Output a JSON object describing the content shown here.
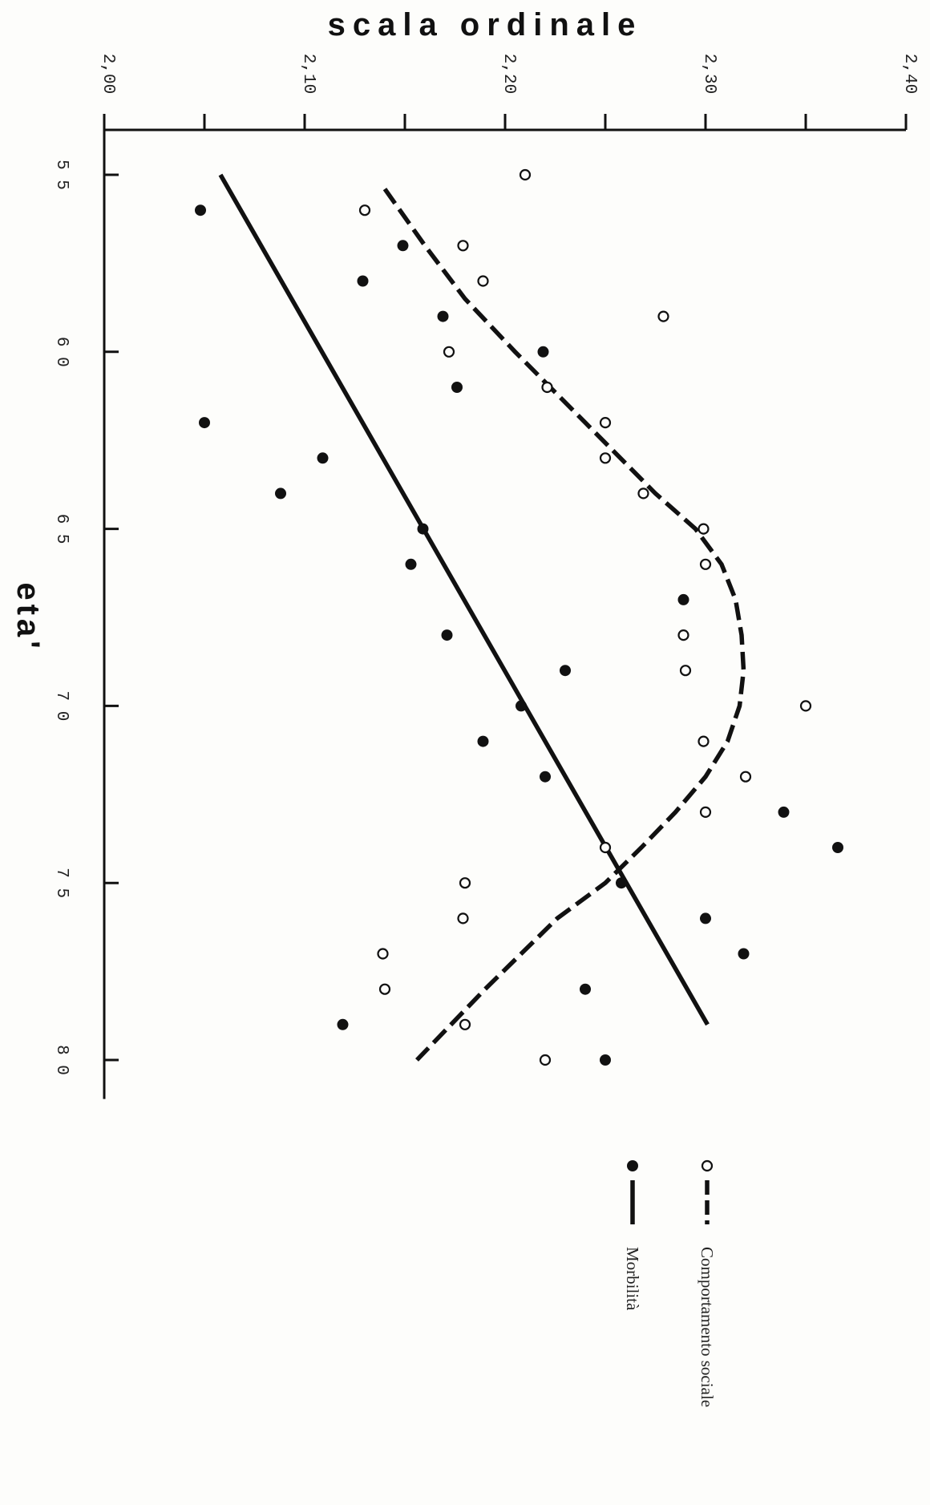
{
  "chart_data": {
    "type": "scatter",
    "orientation": "rotated-90-clockwise",
    "xlabel": "eta'",
    "ylabel": "scala ordinale",
    "xlim": [
      53.5,
      81
    ],
    "ylim": [
      2.0,
      2.4
    ],
    "x_ticks": [
      55,
      60,
      65,
      70,
      75,
      80
    ],
    "x_tick_labels": [
      "5 5",
      "6 0",
      "6 5",
      "7 0",
      "7 5",
      "8 0"
    ],
    "y_ticks": [
      2.0,
      2.05,
      2.1,
      2.15,
      2.2,
      2.25,
      2.3,
      2.35,
      2.4
    ],
    "y_tick_labels": [
      "2,00",
      "",
      "2,10",
      "",
      "2,20",
      "",
      "2,30",
      "",
      "2,40"
    ],
    "grid": false,
    "legend_position": "bottom",
    "series": [
      {
        "name": "Morbilità",
        "marker": "filled-circle",
        "line_style": "solid",
        "color": "#111111",
        "points": [
          {
            "x": 56,
            "y": 2.048
          },
          {
            "x": 57,
            "y": 2.149
          },
          {
            "x": 58,
            "y": 2.129
          },
          {
            "x": 59,
            "y": 2.169
          },
          {
            "x": 60,
            "y": 2.219
          },
          {
            "x": 61,
            "y": 2.176
          },
          {
            "x": 62,
            "y": 2.05
          },
          {
            "x": 63,
            "y": 2.109
          },
          {
            "x": 64,
            "y": 2.088
          },
          {
            "x": 65,
            "y": 2.159
          },
          {
            "x": 66,
            "y": 2.153
          },
          {
            "x": 67,
            "y": 2.289
          },
          {
            "x": 68,
            "y": 2.171
          },
          {
            "x": 69,
            "y": 2.23
          },
          {
            "x": 70,
            "y": 2.208
          },
          {
            "x": 71,
            "y": 2.189
          },
          {
            "x": 72,
            "y": 2.22
          },
          {
            "x": 73,
            "y": 2.339
          },
          {
            "x": 74,
            "y": 2.366
          },
          {
            "x": 75,
            "y": 2.258
          },
          {
            "x": 76,
            "y": 2.3
          },
          {
            "x": 77,
            "y": 2.319
          },
          {
            "x": 78,
            "y": 2.24
          },
          {
            "x": 79,
            "y": 2.119
          },
          {
            "x": 80,
            "y": 2.25
          }
        ],
        "fit": [
          {
            "x": 55,
            "y": 2.058
          },
          {
            "x": 79,
            "y": 2.301
          }
        ]
      },
      {
        "name": "Comportamento sociale",
        "marker": "open-circle",
        "line_style": "dashed",
        "color": "#111111",
        "points": [
          {
            "x": 55,
            "y": 2.21
          },
          {
            "x": 56,
            "y": 2.13
          },
          {
            "x": 57,
            "y": 2.179
          },
          {
            "x": 58,
            "y": 2.189
          },
          {
            "x": 59,
            "y": 2.279
          },
          {
            "x": 60,
            "y": 2.172
          },
          {
            "x": 61,
            "y": 2.221
          },
          {
            "x": 62,
            "y": 2.25
          },
          {
            "x": 63,
            "y": 2.25
          },
          {
            "x": 64,
            "y": 2.269
          },
          {
            "x": 65,
            "y": 2.299
          },
          {
            "x": 66,
            "y": 2.3
          },
          {
            "x": 68,
            "y": 2.289
          },
          {
            "x": 69,
            "y": 2.29
          },
          {
            "x": 70,
            "y": 2.35
          },
          {
            "x": 71,
            "y": 2.299
          },
          {
            "x": 72,
            "y": 2.32
          },
          {
            "x": 73,
            "y": 2.3
          },
          {
            "x": 74,
            "y": 2.25
          },
          {
            "x": 75,
            "y": 2.18
          },
          {
            "x": 76,
            "y": 2.179
          },
          {
            "x": 77,
            "y": 2.139
          },
          {
            "x": 78,
            "y": 2.14
          },
          {
            "x": 79,
            "y": 2.18
          },
          {
            "x": 80,
            "y": 2.22
          }
        ],
        "fit": [
          {
            "x": 55.4,
            "y": 2.14
          },
          {
            "x": 57,
            "y": 2.16
          },
          {
            "x": 58.5,
            "y": 2.18
          },
          {
            "x": 60,
            "y": 2.205
          },
          {
            "x": 62,
            "y": 2.24
          },
          {
            "x": 64,
            "y": 2.275
          },
          {
            "x": 65,
            "y": 2.295
          },
          {
            "x": 66,
            "y": 2.308
          },
          {
            "x": 67,
            "y": 2.315
          },
          {
            "x": 68,
            "y": 2.318
          },
          {
            "x": 69,
            "y": 2.319
          },
          {
            "x": 70,
            "y": 2.317
          },
          {
            "x": 71,
            "y": 2.311
          },
          {
            "x": 72,
            "y": 2.3
          },
          {
            "x": 73,
            "y": 2.285
          },
          {
            "x": 74,
            "y": 2.268
          },
          {
            "x": 75,
            "y": 2.25
          },
          {
            "x": 76,
            "y": 2.226
          },
          {
            "x": 78,
            "y": 2.19
          },
          {
            "x": 80,
            "y": 2.156
          }
        ]
      }
    ]
  }
}
